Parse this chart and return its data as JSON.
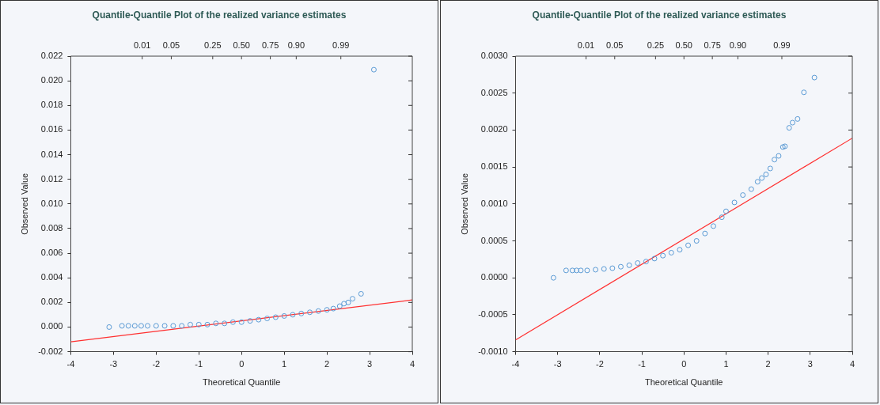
{
  "chart_data": [
    {
      "type": "scatter",
      "title": "Quantile-Quantile Plot of the realized variance estimates",
      "xlabel": "Theoretical Quantile",
      "ylabel": "Observed Value",
      "xlim": [
        -4,
        4
      ],
      "xticks": [
        -4,
        -3,
        -2,
        -1,
        0,
        1,
        2,
        3,
        4
      ],
      "annotations": [
        "0.01",
        "0.05",
        "0.25",
        "0.50",
        "0.75",
        "0.90",
        "0.99"
      ],
      "ylim": [
        -0.002,
        0.022
      ],
      "yticks": [
        {
          "value": -0.002,
          "label": "-0.002"
        },
        {
          "value": 0,
          "label": "0.000"
        },
        {
          "value": 0.002,
          "label": "0.002"
        },
        {
          "value": 0.004,
          "label": "0.004"
        },
        {
          "value": 0.006,
          "label": "0.006"
        },
        {
          "value": 0.008,
          "label": "0.008"
        },
        {
          "value": 0.01,
          "label": "0.010"
        },
        {
          "value": 0.012,
          "label": "0.012"
        },
        {
          "value": 0.014,
          "label": "0.014"
        },
        {
          "value": 0.016,
          "label": "0.016"
        },
        {
          "value": 0.018,
          "label": "0.018"
        },
        {
          "value": 0.02,
          "label": "0.020"
        },
        {
          "value": 0.022,
          "label": "0.022"
        }
      ],
      "grid": false,
      "legend": false,
      "series": [
        {
          "color": "#5b9bd5",
          "marker": "circle",
          "x": [
            -3.1,
            -2.8,
            -2.65,
            -2.5,
            -2.35,
            -2.2,
            -2.0,
            -1.8,
            -1.6,
            -1.4,
            -1.2,
            -1.0,
            -0.8,
            -0.6,
            -0.4,
            -0.2,
            0,
            0.2,
            0.4,
            0.6,
            0.8,
            1.0,
            1.2,
            1.4,
            1.6,
            1.8,
            2.0,
            2.15,
            2.3,
            2.4,
            2.5,
            2.6,
            2.8,
            3.1
          ],
          "values": [
            0.0,
            0.0001,
            0.0001,
            0.0001,
            0.0001,
            0.0001,
            0.0001,
            0.0001,
            0.0001,
            0.0001,
            0.0002,
            0.0002,
            0.0002,
            0.0003,
            0.0003,
            0.0004,
            0.0004,
            0.0005,
            0.0006,
            0.0007,
            0.0008,
            0.0009,
            0.001,
            0.0011,
            0.0012,
            0.0013,
            0.0014,
            0.0015,
            0.0017,
            0.0019,
            0.002,
            0.0023,
            0.0027,
            0.0209
          ]
        },
        {
          "type": "line",
          "color": "#ff3030",
          "marker": "none",
          "line_style": "solid",
          "x": [
            -4,
            4
          ],
          "values": [
            -0.0012,
            0.0022
          ]
        }
      ]
    },
    {
      "type": "scatter",
      "title": "Quantile-Quantile Plot of the realized variance estimates",
      "xlabel": "Theoretical Quantile",
      "ylabel": "Observed Value",
      "xlim": [
        -4,
        4
      ],
      "xticks": [
        -4,
        -3,
        -2,
        -1,
        0,
        1,
        2,
        3,
        4
      ],
      "annotations": [
        "0.01",
        "0.05",
        "0.25",
        "0.50",
        "0.75",
        "0.90",
        "0.99"
      ],
      "ylim": [
        -0.001,
        0.003
      ],
      "yticks": [
        {
          "value": -0.001,
          "label": "-0.0010"
        },
        {
          "value": -0.0005,
          "label": "-0.0005"
        },
        {
          "value": 0,
          "label": "0.0000"
        },
        {
          "value": 0.0005,
          "label": "0.0005"
        },
        {
          "value": 0.001,
          "label": "0.0010"
        },
        {
          "value": 0.0015,
          "label": "0.0015"
        },
        {
          "value": 0.002,
          "label": "0.0020"
        },
        {
          "value": 0.0025,
          "label": "0.0025"
        },
        {
          "value": 0.003,
          "label": "0.0030"
        }
      ],
      "grid": false,
      "legend": false,
      "series": [
        {
          "color": "#5b9bd5",
          "marker": "circle",
          "x": [
            -3.1,
            -2.8,
            -2.65,
            -2.55,
            -2.45,
            -2.3,
            -2.1,
            -1.9,
            -1.7,
            -1.5,
            -1.3,
            -1.1,
            -0.9,
            -0.7,
            -0.5,
            -0.3,
            -0.1,
            0.1,
            0.3,
            0.5,
            0.7,
            0.9,
            1.0,
            1.2,
            1.4,
            1.6,
            1.75,
            1.85,
            1.95,
            2.05,
            2.15,
            2.25,
            2.35,
            2.4,
            2.5,
            2.58,
            2.7,
            2.85,
            3.1
          ],
          "values": [
            0.0,
            0.0001,
            0.0001,
            0.0001,
            0.0001,
            0.0001,
            0.00011,
            0.00012,
            0.00013,
            0.00015,
            0.00017,
            0.0002,
            0.00022,
            0.00026,
            0.0003,
            0.00034,
            0.00038,
            0.00044,
            0.0005,
            0.0006,
            0.0007,
            0.00082,
            0.0009,
            0.00102,
            0.00112,
            0.0012,
            0.0013,
            0.00135,
            0.0014,
            0.00148,
            0.0016,
            0.00165,
            0.00177,
            0.00178,
            0.00203,
            0.0021,
            0.00215,
            0.00251,
            0.00271
          ]
        },
        {
          "type": "line",
          "color": "#ff3030",
          "marker": "none",
          "line_style": "solid",
          "x": [
            -4,
            4
          ],
          "values": [
            -0.00084,
            0.00189
          ]
        }
      ]
    }
  ]
}
